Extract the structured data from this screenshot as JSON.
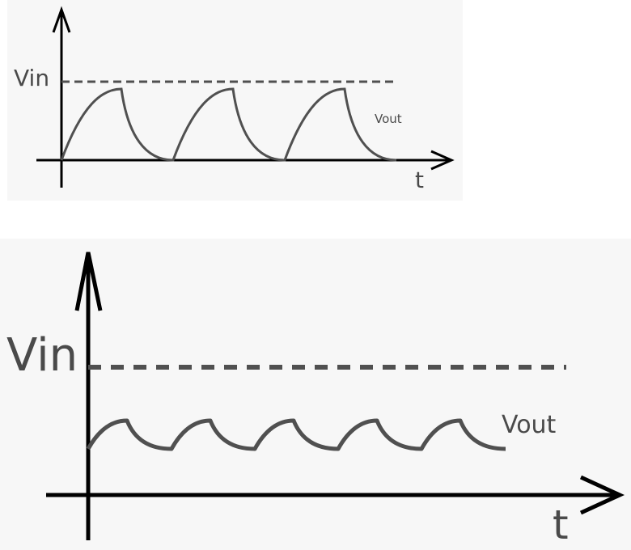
{
  "colors": {
    "background": "#f7f7f7",
    "axis": "#000000",
    "curve": "#505050",
    "dashed": "#505050",
    "text": "#4a4a4a"
  },
  "top_diagram": {
    "y_label": "Vin",
    "x_label": "t",
    "curve_label": "Vout",
    "cycles": 3,
    "description_level": "full charge to Vin then full discharge to 0"
  },
  "bottom_diagram": {
    "y_label": "Vin",
    "x_label": "t",
    "curve_label": "Vout",
    "cycles": 5
  }
}
